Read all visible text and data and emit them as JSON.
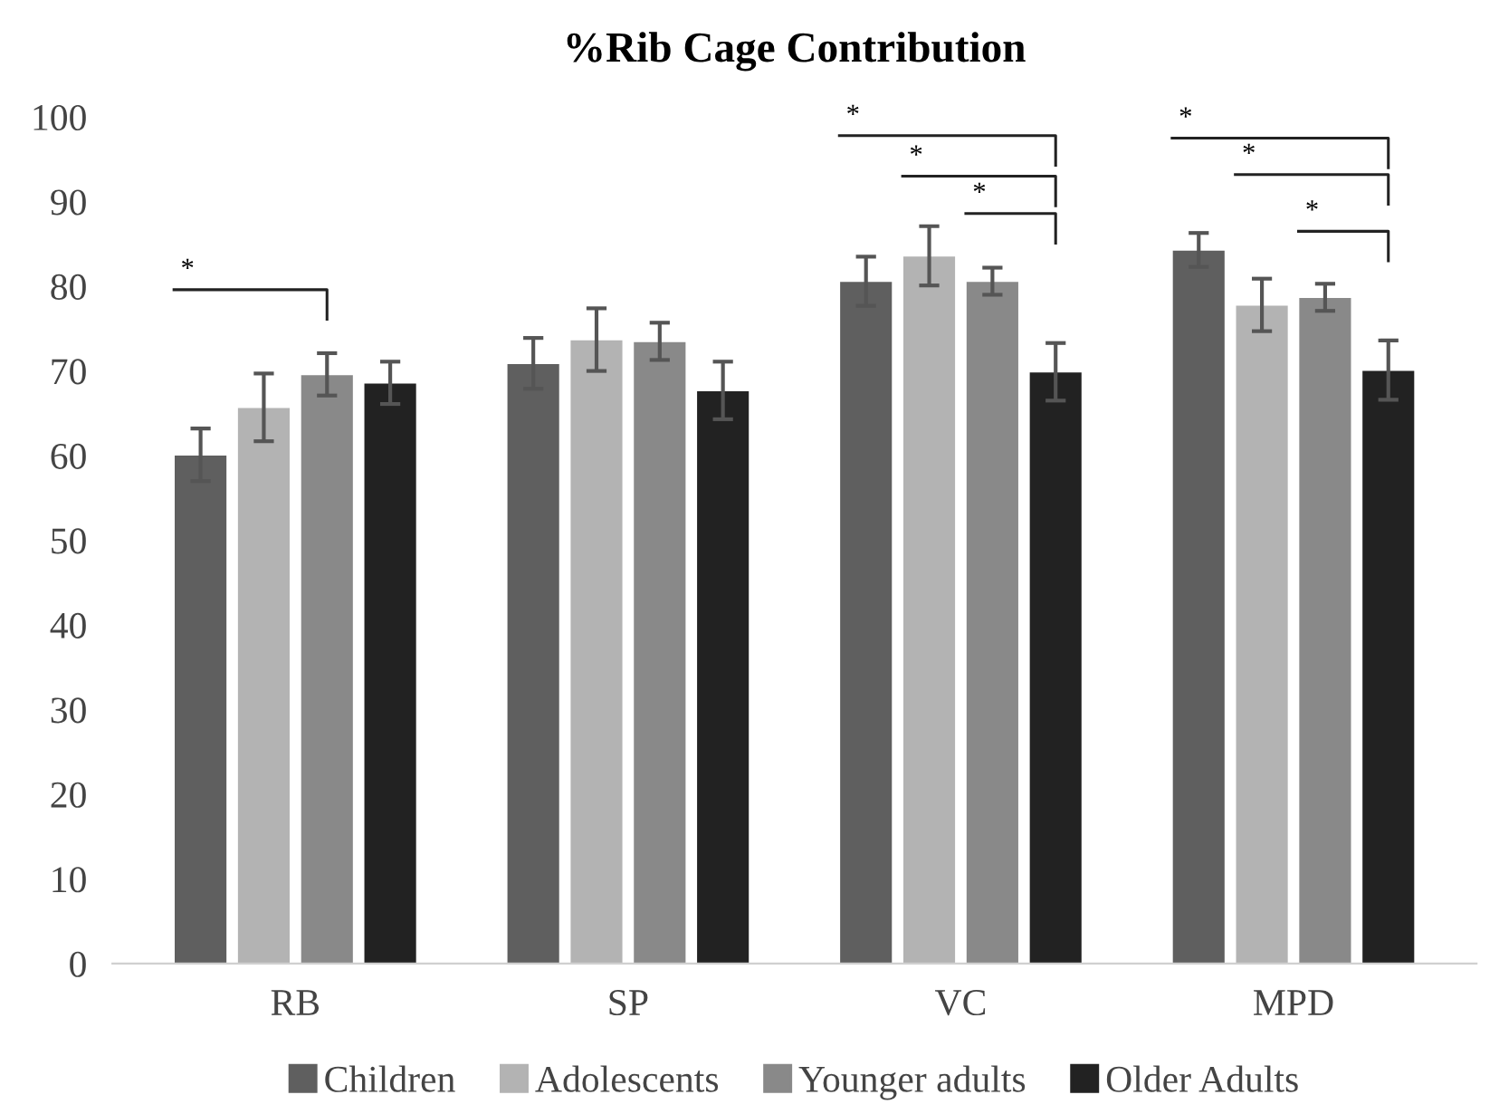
{
  "chart_data": {
    "type": "bar",
    "title": "%Rib Cage Contribution",
    "categories": [
      "RB",
      "SP",
      "VC",
      "MPD"
    ],
    "series": [
      {
        "name": "Children",
        "color": "#5f5f5f",
        "values": [
          60.1,
          70.9,
          80.6,
          84.3
        ],
        "errors": [
          3.1,
          3.0,
          2.9,
          2.0
        ]
      },
      {
        "name": "Adolescents",
        "color": "#b3b3b3",
        "values": [
          65.7,
          73.7,
          83.6,
          77.8
        ],
        "errors": [
          4.0,
          3.7,
          3.5,
          3.1
        ]
      },
      {
        "name": "Younger adults",
        "color": "#898989",
        "values": [
          69.6,
          73.5,
          80.6,
          78.7
        ],
        "errors": [
          2.5,
          2.2,
          1.6,
          1.6
        ]
      },
      {
        "name": "Older Adults",
        "color": "#222222",
        "values": [
          68.6,
          67.7,
          69.9,
          70.1
        ],
        "errors": [
          2.5,
          3.4,
          3.4,
          3.5
        ]
      }
    ],
    "ylim": [
      0,
      100
    ],
    "yticks": [
      0,
      10,
      20,
      30,
      40,
      50,
      60,
      70,
      80,
      90,
      100
    ],
    "grid": false,
    "legend": "bottom",
    "annotations": [
      "*",
      "*",
      "*",
      "*",
      "*",
      "*",
      "*"
    ]
  }
}
